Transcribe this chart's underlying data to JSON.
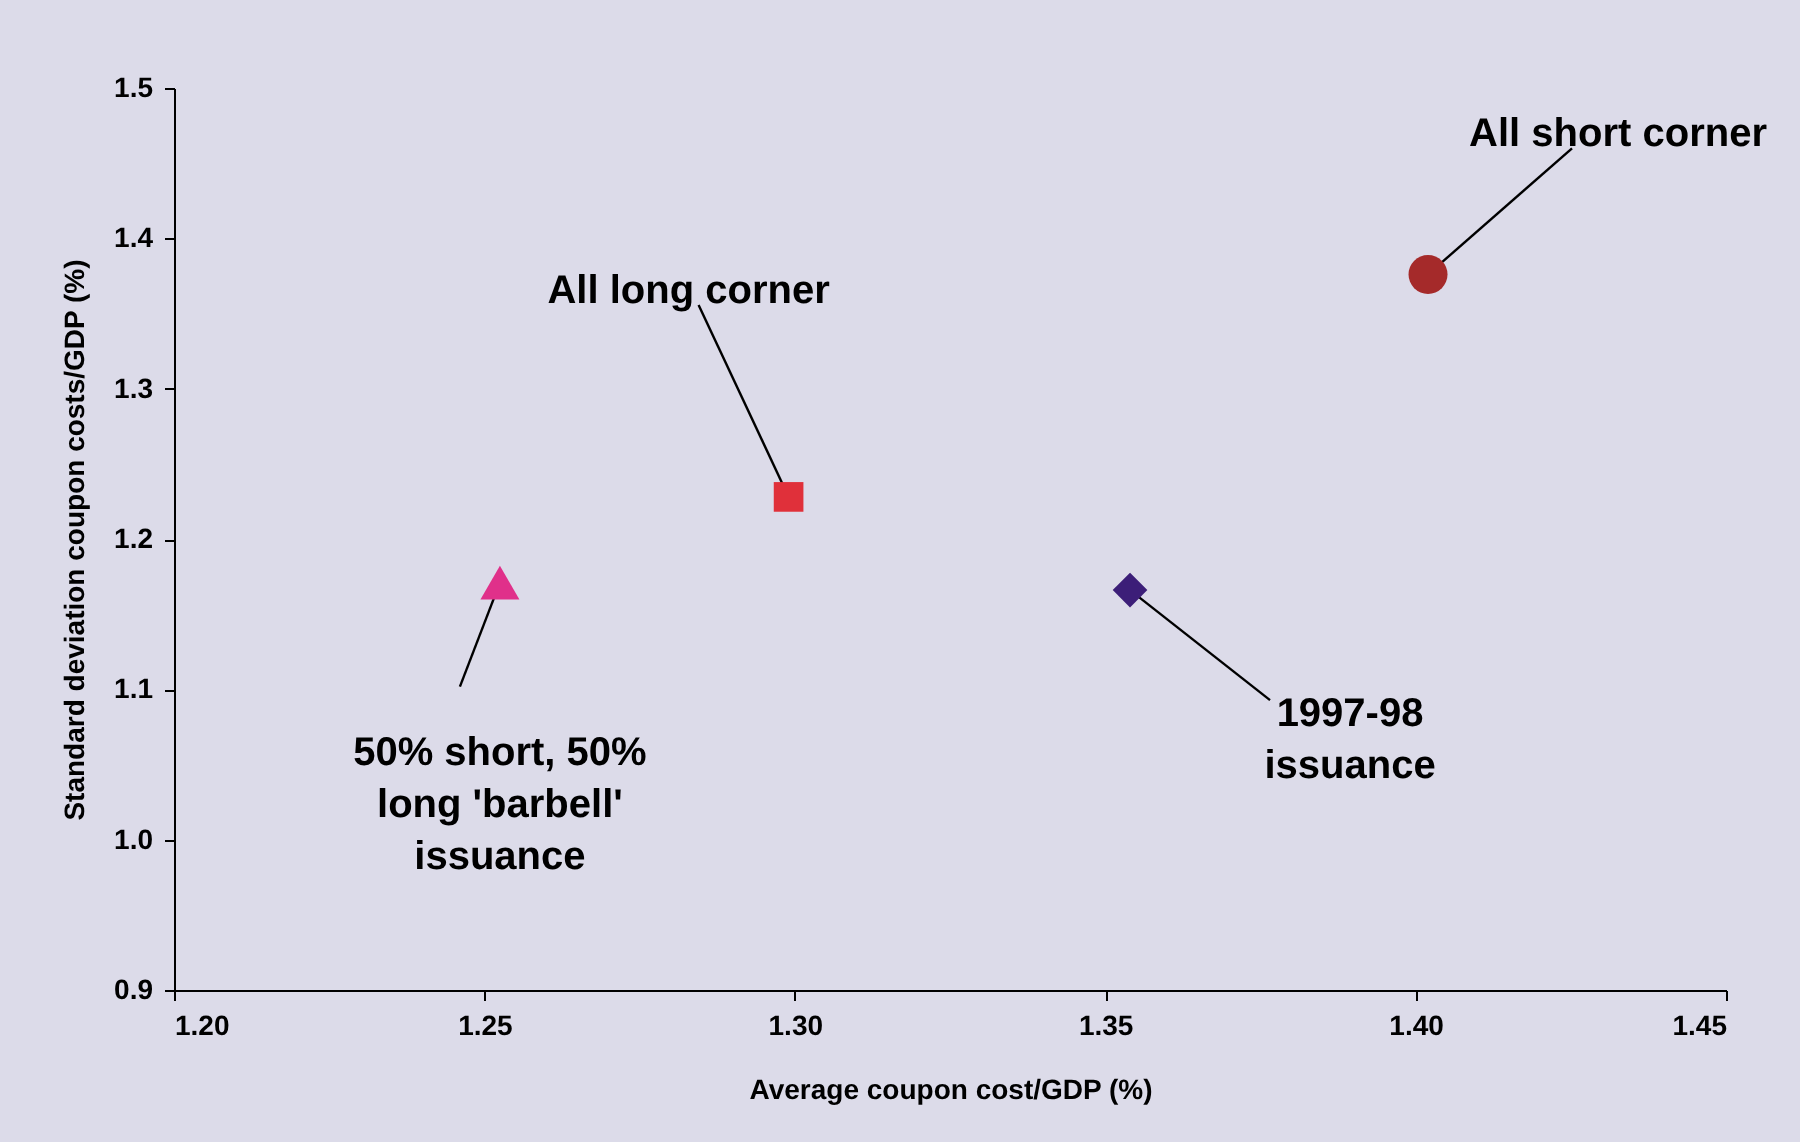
{
  "chart_data": {
    "type": "scatter",
    "xlabel": "Average coupon cost/GDP (%)",
    "ylabel": "Standard deviation coupon costs/GDP (%)",
    "xlim": [
      1.2,
      1.45
    ],
    "xticks": [
      {
        "value": 1.2,
        "label": "1.20"
      },
      {
        "value": 1.25,
        "label": "1.25"
      },
      {
        "value": 1.3,
        "label": "1.30"
      },
      {
        "value": 1.35,
        "label": "1.35"
      },
      {
        "value": 1.4,
        "label": "1.40"
      },
      {
        "value": 1.45,
        "label": "1.45"
      }
    ],
    "ylim": [
      0.9,
      1.5
    ],
    "yticks": [
      0.9,
      {
        "value": 1.0,
        "label": "1.0"
      },
      1.1,
      1.2,
      1.3,
      1.4,
      1.5
    ],
    "grid": false,
    "series": [
      {
        "color": "#a52a2a",
        "marker": "circle",
        "x": [
          1.402
        ],
        "values": [
          1.376
        ]
      },
      {
        "color": "#e0303a",
        "marker": "square",
        "x": [
          1.299
        ],
        "values": [
          1.228
        ]
      },
      {
        "color": "#e0308a",
        "marker": "triangle",
        "x": [
          1.2525
        ],
        "values": [
          1.171
        ]
      },
      {
        "color": "#3c1e78",
        "marker": "diamond",
        "x": [
          1.354
        ],
        "values": [
          1.166
        ]
      }
    ],
    "annotations": [
      {
        "text": "All short corner",
        "x": 1.402,
        "y": 1.376
      },
      {
        "text": "All long corner",
        "x": 1.299,
        "y": 1.228
      },
      {
        "text": "50% short, 50%\nlong 'barbell'\nissuance",
        "x": 1.2525,
        "y": 1.171
      },
      {
        "text": "1997-98\nissuance",
        "x": 1.354,
        "y": 1.166
      }
    ]
  }
}
